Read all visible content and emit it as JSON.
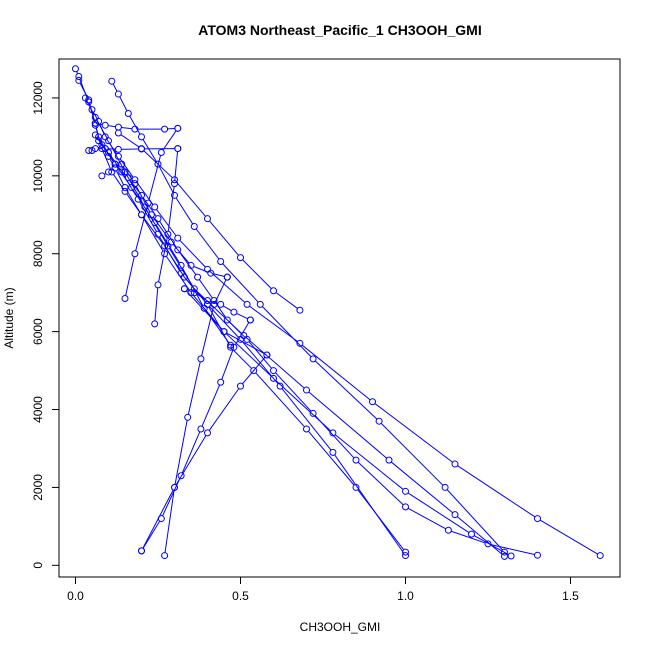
{
  "chart_data": {
    "type": "line",
    "title": "ATOM3 Northeast_Pacific_1 CH3OOH_GMI",
    "xlabel": "CH3OOH_GMI",
    "ylabel": "Altitude (m)",
    "xlim": [
      -0.05,
      1.65
    ],
    "ylim": [
      -300,
      13000
    ],
    "xticks": [
      0.0,
      0.5,
      1.0,
      1.5
    ],
    "xtick_labels": [
      "0.0",
      "0.5",
      "1.0",
      "1.5"
    ],
    "yticks": [
      0,
      2000,
      4000,
      6000,
      8000,
      10000,
      12000
    ],
    "ytick_labels": [
      "0",
      "2000",
      "4000",
      "6000",
      "8000",
      "10000",
      "12000"
    ],
    "series_color": "#0000ff",
    "marker": "open-circle",
    "grid": false,
    "legend": "none",
    "series": [
      {
        "x": [
          0.0,
          0.01,
          0.04,
          0.06,
          0.07,
          0.09,
          0.12,
          0.16,
          0.2,
          0.25,
          0.31,
          0.37,
          0.42,
          0.46,
          0.52,
          0.6,
          0.72,
          0.85,
          1.0,
          1.13,
          1.25,
          1.4
        ],
        "y": [
          12750,
          12550,
          11900,
          11350,
          11000,
          10700,
          10300,
          9950,
          9500,
          8900,
          8100,
          7400,
          6800,
          6300,
          5800,
          5000,
          3900,
          2700,
          1500,
          900,
          550,
          260
        ]
      },
      {
        "x": [
          0.01,
          0.04,
          0.06,
          0.08,
          0.11,
          0.15,
          0.2,
          0.27,
          0.33,
          0.4,
          0.5,
          0.62,
          0.78,
          1.0
        ],
        "y": [
          12450,
          11950,
          11300,
          10700,
          10100,
          9600,
          9000,
          8200,
          7400,
          6700,
          5800,
          4600,
          2900,
          250
        ]
      },
      {
        "x": [
          0.11,
          0.13,
          0.16,
          0.2,
          0.25,
          0.3,
          0.36,
          0.44,
          0.56,
          0.72,
          0.92,
          1.12,
          1.3
        ],
        "y": [
          12430,
          12100,
          11600,
          11000,
          10300,
          9500,
          8700,
          7800,
          6700,
          5300,
          3700,
          2000,
          340
        ]
      },
      {
        "x": [
          0.06,
          0.09,
          0.13,
          0.18,
          0.27,
          0.31
        ],
        "y": [
          11350,
          11300,
          11250,
          11200,
          11200,
          11220
        ]
      },
      {
        "x": [
          0.31,
          0.26,
          0.22,
          0.18,
          0.15
        ],
        "y": [
          11220,
          10600,
          9300,
          8000,
          6850
        ]
      },
      {
        "x": [
          0.04,
          0.05,
          0.06,
          0.09,
          0.13,
          0.2,
          0.31
        ],
        "y": [
          10650,
          10650,
          10700,
          10700,
          10680,
          10690,
          10700
        ]
      },
      {
        "x": [
          0.31,
          0.3,
          0.28,
          0.25,
          0.24
        ],
        "y": [
          10700,
          9800,
          8500,
          7200,
          6200
        ]
      },
      {
        "x": [
          0.08,
          0.1,
          0.12,
          0.14,
          0.18,
          0.23,
          0.29,
          0.35,
          0.41,
          0.46
        ],
        "y": [
          10000,
          10100,
          10200,
          10300,
          9800,
          9000,
          8300,
          7700,
          7500,
          7400
        ]
      },
      {
        "x": [
          0.46,
          0.42,
          0.38,
          0.34,
          0.3,
          0.27
        ],
        "y": [
          7400,
          6700,
          5300,
          3800,
          2000,
          250
        ]
      },
      {
        "x": [
          0.05,
          0.07,
          0.09,
          0.13,
          0.18,
          0.24,
          0.31,
          0.4,
          0.52,
          0.68,
          0.9,
          1.15,
          1.4,
          1.59
        ],
        "y": [
          11700,
          11400,
          11000,
          10500,
          9900,
          9200,
          8400,
          7600,
          6700,
          5700,
          4200,
          2600,
          1200,
          250
        ]
      },
      {
        "x": [
          0.68,
          0.6,
          0.5,
          0.4,
          0.3,
          0.2,
          0.13
        ],
        "y": [
          6550,
          7050,
          7900,
          8900,
          9900,
          10700,
          11100
        ]
      },
      {
        "x": [
          0.1,
          0.12,
          0.15,
          0.2,
          0.27,
          0.35,
          0.45,
          0.58
        ],
        "y": [
          10500,
          10200,
          9700,
          9000,
          8000,
          7000,
          6000,
          5400
        ]
      },
      {
        "x": [
          0.58,
          0.5,
          0.4,
          0.3,
          0.2
        ],
        "y": [
          5400,
          4600,
          3400,
          2000,
          370
        ]
      },
      {
        "x": [
          0.2,
          0.26,
          0.32,
          0.38,
          0.44,
          0.48,
          0.53
        ],
        "y": [
          370,
          1200,
          2300,
          3500,
          4700,
          5600,
          6300
        ]
      },
      {
        "x": [
          0.53,
          0.48,
          0.44,
          0.4,
          0.36,
          0.33
        ],
        "y": [
          6300,
          6500,
          6700,
          6800,
          7000,
          7100
        ]
      },
      {
        "x": [
          0.33,
          0.45,
          0.6,
          0.78,
          1.0,
          1.2,
          1.32
        ],
        "y": [
          7100,
          6000,
          4800,
          3400,
          1900,
          800,
          240
        ]
      },
      {
        "x": [
          0.07,
          0.1,
          0.14,
          0.19,
          0.25,
          0.32,
          0.4,
          0.47,
          0.54,
          0.7,
          0.85,
          1.0
        ],
        "y": [
          10900,
          10600,
          10100,
          9400,
          8500,
          7500,
          6700,
          5600,
          5000,
          3500,
          2000,
          340
        ]
      },
      {
        "x": [
          0.03,
          0.06,
          0.1,
          0.15,
          0.21,
          0.28,
          0.36,
          0.51,
          0.7,
          0.95,
          1.15,
          1.3
        ],
        "y": [
          12000,
          11500,
          10900,
          10100,
          9200,
          8200,
          7100,
          5900,
          4500,
          2700,
          1300,
          230
        ]
      },
      {
        "x": [
          0.06,
          0.08,
          0.12,
          0.17,
          0.24,
          0.32,
          0.39,
          0.47
        ],
        "y": [
          11050,
          10800,
          10300,
          9700,
          8800,
          7700,
          6600,
          5650
        ]
      }
    ]
  }
}
